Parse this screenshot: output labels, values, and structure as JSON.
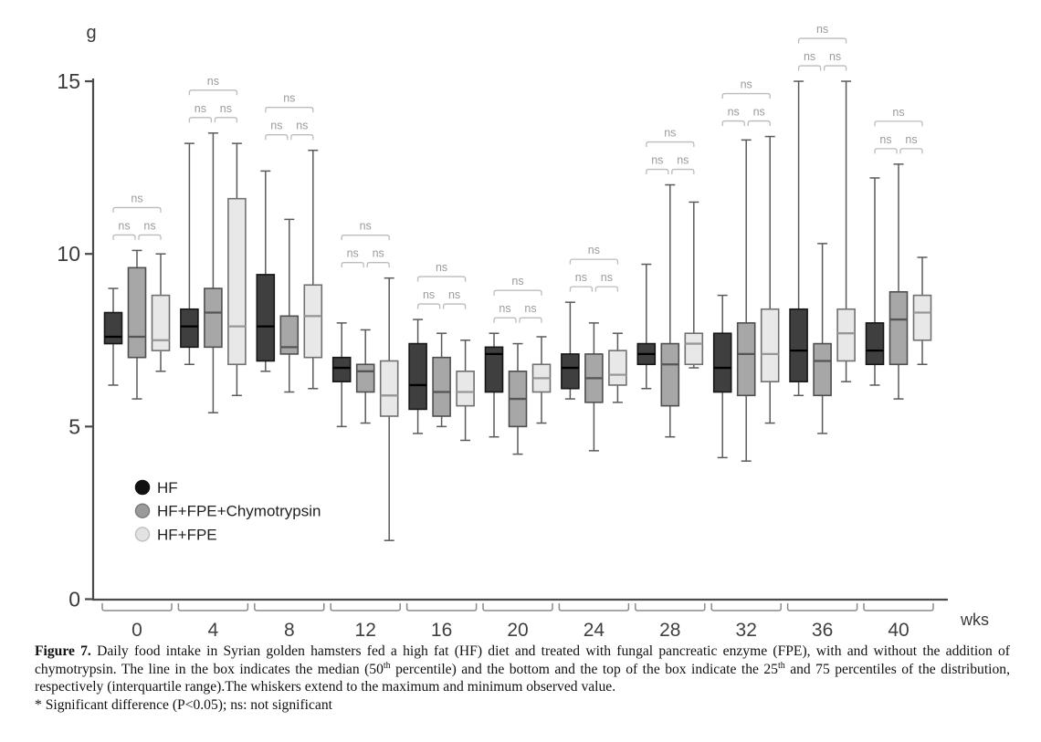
{
  "chart_data": {
    "type": "boxplot",
    "title": "",
    "ylabel_unit": "g",
    "xlabel_unit": "wks",
    "ylim": [
      0,
      15
    ],
    "y_ticks": [
      0,
      5,
      10,
      15
    ],
    "categories": [
      "0",
      "4",
      "8",
      "12",
      "16",
      "20",
      "24",
      "28",
      "32",
      "36",
      "40"
    ],
    "box_value_order": [
      "min",
      "q1",
      "median",
      "q3",
      "max"
    ],
    "series": [
      {
        "name": "HF",
        "boxes": [
          [
            6.2,
            7.4,
            7.6,
            8.3,
            9.0
          ],
          [
            6.8,
            7.3,
            7.9,
            8.4,
            13.2
          ],
          [
            6.6,
            6.9,
            7.9,
            9.4,
            12.4
          ],
          [
            5.0,
            6.3,
            6.7,
            7.0,
            8.0
          ],
          [
            4.8,
            5.5,
            6.2,
            7.4,
            8.1
          ],
          [
            4.7,
            6.0,
            7.1,
            7.3,
            7.7
          ],
          [
            5.8,
            6.1,
            6.7,
            7.1,
            8.6
          ],
          [
            6.1,
            6.8,
            7.1,
            7.4,
            9.7
          ],
          [
            4.1,
            6.0,
            6.7,
            7.7,
            8.8
          ],
          [
            5.9,
            6.3,
            7.2,
            8.4,
            15.0
          ],
          [
            6.2,
            6.8,
            7.2,
            8.0,
            12.2
          ]
        ]
      },
      {
        "name": "HF+FPE+Chymotrypsin",
        "boxes": [
          [
            5.8,
            7.0,
            7.6,
            9.6,
            10.1
          ],
          [
            5.4,
            7.3,
            8.3,
            9.0,
            13.5
          ],
          [
            6.0,
            7.1,
            7.3,
            8.2,
            11.0
          ],
          [
            5.1,
            6.0,
            6.6,
            6.8,
            7.8
          ],
          [
            5.0,
            5.3,
            6.0,
            7.0,
            7.7
          ],
          [
            4.2,
            5.0,
            5.8,
            6.6,
            7.4
          ],
          [
            4.3,
            5.7,
            6.4,
            7.1,
            8.0
          ],
          [
            4.7,
            5.6,
            6.8,
            7.4,
            12.0
          ],
          [
            4.0,
            5.9,
            7.1,
            8.0,
            13.3
          ],
          [
            4.8,
            5.9,
            6.9,
            7.4,
            10.3
          ],
          [
            5.8,
            6.8,
            8.1,
            8.9,
            12.6
          ]
        ]
      },
      {
        "name": "HF+FPE",
        "boxes": [
          [
            6.6,
            7.2,
            7.5,
            8.8,
            10.0
          ],
          [
            5.9,
            6.8,
            7.9,
            11.6,
            13.2
          ],
          [
            6.1,
            7.0,
            8.2,
            9.1,
            13.0
          ],
          [
            1.7,
            5.3,
            5.9,
            6.9,
            9.3
          ],
          [
            4.6,
            5.6,
            6.0,
            6.6,
            7.5
          ],
          [
            5.1,
            6.0,
            6.4,
            6.8,
            7.6
          ],
          [
            5.7,
            6.2,
            6.5,
            7.2,
            7.7
          ],
          [
            6.7,
            6.8,
            7.4,
            7.7,
            11.5
          ],
          [
            5.1,
            6.3,
            7.1,
            8.4,
            13.4
          ],
          [
            6.3,
            6.9,
            7.7,
            8.4,
            15.0
          ],
          [
            6.8,
            7.5,
            8.3,
            8.8,
            9.9
          ]
        ]
      }
    ],
    "significance": [
      {
        "pair_left": "ns",
        "pair_right": "ns",
        "overall": "ns"
      },
      {
        "pair_left": "ns",
        "pair_right": "ns",
        "overall": "ns"
      },
      {
        "pair_left": "ns",
        "pair_right": "ns",
        "overall": "ns"
      },
      {
        "pair_left": "ns",
        "pair_right": "ns",
        "overall": "ns"
      },
      {
        "pair_left": "ns",
        "pair_right": "ns",
        "overall": "ns"
      },
      {
        "pair_left": "ns",
        "pair_right": "ns",
        "overall": "ns"
      },
      {
        "pair_left": "ns",
        "pair_right": "ns",
        "overall": "ns"
      },
      {
        "pair_left": "ns",
        "pair_right": "ns",
        "overall": "ns"
      },
      {
        "pair_left": "ns",
        "pair_right": "ns",
        "overall": "ns"
      },
      {
        "pair_left": "ns",
        "pair_right": "ns",
        "overall": "ns"
      },
      {
        "pair_left": "ns",
        "pair_right": "ns",
        "overall": "ns"
      }
    ],
    "legend": [
      "HF",
      "HF+FPE+Chymotrypsin",
      "HF+FPE"
    ],
    "legend_position": "inside-left"
  },
  "colors": {
    "series_fill": [
      "#3f3f3f",
      "#a7a7a7",
      "#e8e8e8"
    ],
    "series_stroke": [
      "#161616",
      "#4f4f4f",
      "#707070"
    ],
    "series_median": [
      "#000000",
      "#555555",
      "#979797"
    ],
    "legend_dot_fill": [
      "#111111",
      "#9a9a9a",
      "#e2e2e2"
    ],
    "legend_dot_stroke": [
      "#111111",
      "#7c7c7c",
      "#c2c2c2"
    ],
    "whisker": "#5a5a5a",
    "axis": "#4a4a4a",
    "tick_text": "#3a3a3a",
    "ns_text": "#9b9b9b",
    "bracket": "#bcbcbc"
  },
  "caption": {
    "segments": [
      {
        "text": "Figure 7.",
        "bold": true
      },
      {
        "text": " Daily food intake in Syrian golden hamsters fed a high fat (HF) diet and treated with fungal pancreatic enzyme (FPE), with and without the addition of chymotrypsin. The line in the box indicates the median (50"
      },
      {
        "text": "th",
        "sup": true
      },
      {
        "text": " percentile) and the bottom and the top of the box indicate the 25"
      },
      {
        "text": "th",
        "sup": true
      },
      {
        "text": " and 75 percentiles of the distribution, respectively (interquartile range).The whiskers extend to the maximum and minimum observed value."
      }
    ],
    "note": "* Significant difference (P<0.05); ns: not significant"
  }
}
